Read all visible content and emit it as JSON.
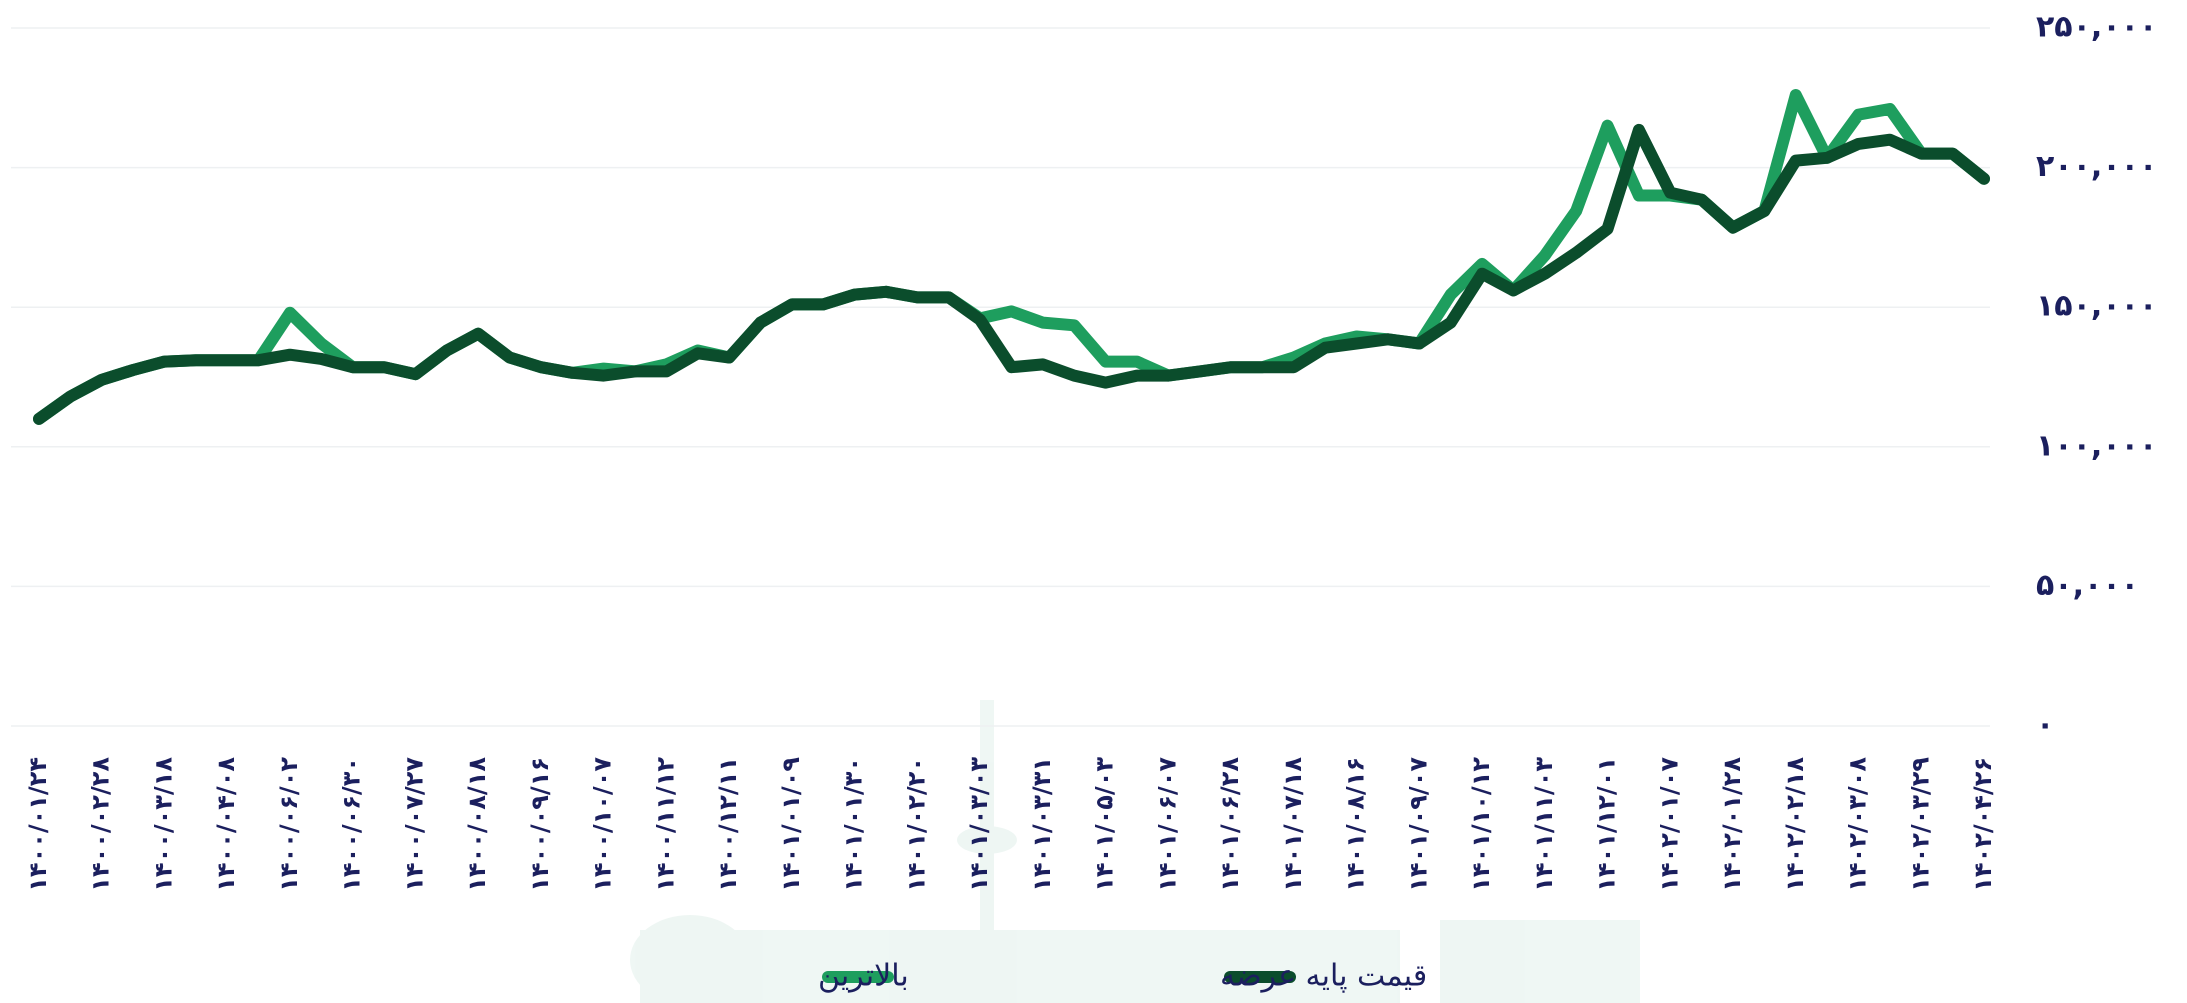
{
  "chart_data": {
    "type": "line",
    "categories": [
      "۱۴۰۰/۰۱/۲۴",
      null,
      "۱۴۰۰/۰۲/۲۸",
      null,
      "۱۴۰۰/۰۳/۱۸",
      null,
      "۱۴۰۰/۰۴/۰۸",
      null,
      "۱۴۰۰/۰۶/۰۲",
      null,
      "۱۴۰۰/۰۶/۳۰",
      null,
      "۱۴۰۰/۰۷/۲۷",
      null,
      "۱۴۰۰/۰۸/۱۸",
      null,
      "۱۴۰۰/۰۹/۱۶",
      null,
      "۱۴۰۰/۱۰/۰۷",
      null,
      "۱۴۰۰/۱۱/۱۲",
      null,
      "۱۴۰۰/۱۲/۱۱",
      null,
      "۱۴۰۱/۰۱/۰۹",
      null,
      "۱۴۰۱/۰۱/۳۰",
      null,
      "۱۴۰۱/۰۲/۲۰",
      null,
      "۱۴۰۱/۰۳/۰۳",
      null,
      "۱۴۰۱/۰۳/۳۱",
      null,
      "۱۴۰۱/۰۵/۰۳",
      null,
      "۱۴۰۱/۰۶/۰۷",
      null,
      "۱۴۰۱/۰۶/۲۸",
      null,
      "۱۴۰۱/۰۷/۱۸",
      null,
      "۱۴۰۱/۰۸/۱۶",
      null,
      "۱۴۰۱/۰۹/۰۷",
      null,
      "۱۴۰۱/۱۰/۱۲",
      null,
      "۱۴۰۱/۱۱/۰۳",
      null,
      "۱۴۰۱/۱۲/۰۱",
      null,
      "۱۴۰۲/۰۱/۰۷",
      null,
      "۱۴۰۲/۰۱/۲۸",
      null,
      "۱۴۰۲/۰۲/۱۸",
      null,
      "۱۴۰۲/۰۳/۰۸",
      null,
      "۱۴۰۲/۰۳/۲۹",
      null,
      "۱۴۰۲/۰۴/۲۶"
    ],
    "series": [
      {
        "name": "بالاترین",
        "color": "#1e9e5e",
        "values": [
          110000,
          118000,
          124000,
          127500,
          130500,
          131000,
          131000,
          131000,
          148000,
          137000,
          128500,
          128500,
          126000,
          134500,
          140500,
          132000,
          128500,
          126500,
          128000,
          127000,
          129500,
          134500,
          132000,
          144500,
          151000,
          151000,
          154500,
          155500,
          153500,
          153500,
          146000,
          148500,
          144500,
          143500,
          130500,
          130500,
          125500,
          127000,
          128500,
          128500,
          132000,
          137000,
          139500,
          138500,
          137000,
          154500,
          165500,
          156000,
          168500,
          184500,
          215000,
          190000,
          190000,
          188500,
          178500,
          184500,
          226000,
          203500,
          219000,
          221000,
          205000,
          205000,
          196000
        ]
      },
      {
        "name": "قیمت پایه عرضه",
        "color": "#0b4d2c",
        "values": [
          110000,
          118000,
          124000,
          127500,
          130500,
          131000,
          131000,
          131000,
          133000,
          131500,
          128500,
          128500,
          126000,
          134500,
          140500,
          132000,
          128500,
          126500,
          125500,
          127000,
          127000,
          133500,
          132000,
          144500,
          151000,
          151000,
          154500,
          155500,
          153500,
          153500,
          145500,
          128500,
          129500,
          125500,
          123000,
          125500,
          125500,
          127000,
          128500,
          128500,
          128500,
          135500,
          137000,
          138500,
          137000,
          144500,
          162000,
          156000,
          162000,
          169500,
          178000,
          213500,
          191000,
          188500,
          178500,
          184500,
          202500,
          203500,
          208500,
          210000,
          205000,
          205000,
          196000
        ]
      }
    ],
    "ylim": [
      0,
      250000
    ],
    "yticks": [
      {
        "value": 0,
        "label": "۰"
      },
      {
        "value": 50000,
        "label": "۵۰,۰۰۰"
      },
      {
        "value": 100000,
        "label": "۱۰۰,۰۰۰"
      },
      {
        "value": 150000,
        "label": "۱۵۰,۰۰۰"
      },
      {
        "value": 200000,
        "label": "۲۰۰,۰۰۰"
      },
      {
        "value": 250000,
        "label": "۲۵۰,۰۰۰"
      }
    ],
    "grid": true
  }
}
